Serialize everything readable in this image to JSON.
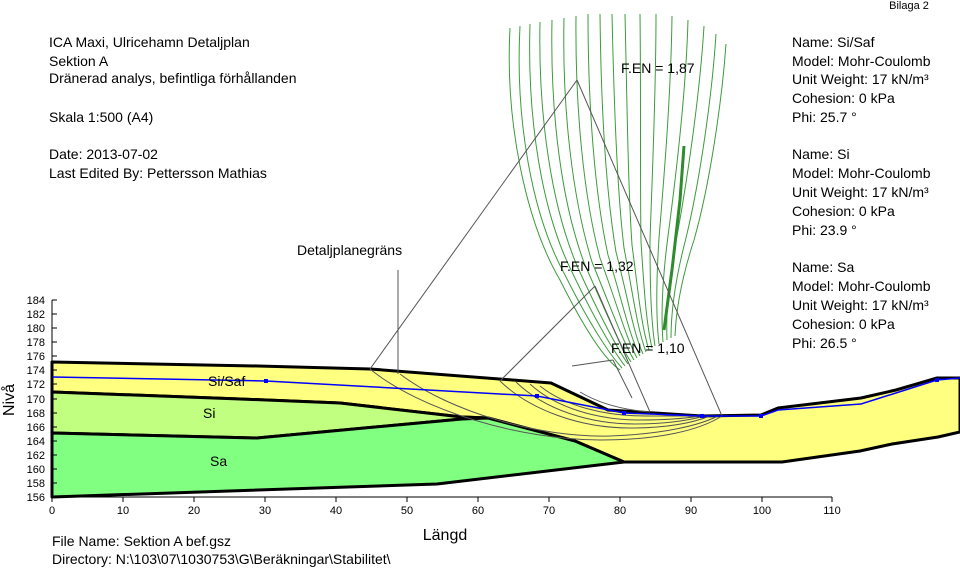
{
  "appendix_label": "Bilaga 2",
  "header": {
    "line1": "ICA Maxi, Ulricehamn Detaljplan",
    "line2": "Sektion A",
    "line3": "Dränerad analys, befintliga förhållanden",
    "scale": "Skala 1:500 (A4)",
    "date": "Date: 2013-07-02",
    "edited_by": "Last Edited By: Pettersson Mathias"
  },
  "materials": [
    {
      "name": "Name: Si/Saf",
      "model": "Model: Mohr-Coulomb",
      "unit_weight": "Unit Weight: 17 kN/m³",
      "cohesion": "Cohesion: 0 kPa",
      "phi": "Phi: 25.7 °"
    },
    {
      "name": "Name: Si",
      "model": "Model: Mohr-Coulomb",
      "unit_weight": "Unit Weight: 17 kN/m³",
      "cohesion": "Cohesion: 0 kPa",
      "phi": "Phi: 23.9 °"
    },
    {
      "name": "Name: Sa",
      "model": "Model: Mohr-Coulomb",
      "unit_weight": "Unit Weight: 17 kN/m³",
      "cohesion": "Cohesion: 0 kPa",
      "phi": "Phi: 26.5 °"
    }
  ],
  "layer_labels": {
    "sisaf": "Si/Saf",
    "si": "Si",
    "sa": "Sa"
  },
  "annotations": {
    "detaljplan": "Detaljplanegräns",
    "fen1": "F.EN = 1,87",
    "fen2": "F.EN = 1,32",
    "fen3": "F.EN = 1,10"
  },
  "axes": {
    "y_title": "Nivå",
    "x_title": "Längd",
    "y_ticks": [
      "156",
      "158",
      "160",
      "162",
      "164",
      "166",
      "168",
      "170",
      "172",
      "174",
      "176",
      "178",
      "180",
      "182",
      "184"
    ],
    "x_ticks": [
      "0",
      "10",
      "20",
      "30",
      "40",
      "50",
      "60",
      "70",
      "80",
      "90",
      "100",
      "110"
    ]
  },
  "footer": {
    "file_name": "File Name: Sektion A bef.gsz",
    "directory": "Directory: N:\\103\\07\\1030753\\G\\Beräkningar\\Stabilitet\\"
  },
  "colors": {
    "sisaf": "#ffff80",
    "si": "#c0ff80",
    "sa": "#80ff80",
    "water_line": "#0000ff",
    "slip_green": "#2e8b2e"
  }
}
